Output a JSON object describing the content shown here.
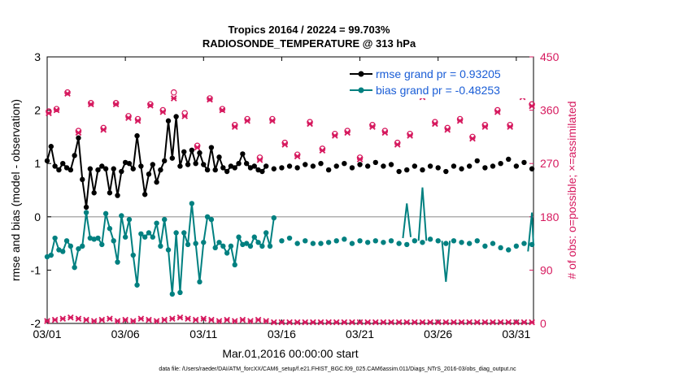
{
  "chart_data": {
    "type": "line",
    "title_line1": "Tropics 20164 / 20224 = 99.703%",
    "title_line2": "RADIOSONDE_TEMPERATURE @ 313 hPa",
    "xlabel": "Mar.01,2016 00:00:00 start",
    "ylabel_left": "rmse and bias (model - observation)",
    "ylabel_right": "# of obs: o=possible; ×=assimilated",
    "xlim": [
      0,
      31.1
    ],
    "ylim_left": [
      -2,
      3
    ],
    "ylim_right": [
      0,
      450
    ],
    "xticks": [
      {
        "x": 0,
        "label": "03/01"
      },
      {
        "x": 5,
        "label": "03/06"
      },
      {
        "x": 10,
        "label": "03/11"
      },
      {
        "x": 15,
        "label": "03/16"
      },
      {
        "x": 20,
        "label": "03/21"
      },
      {
        "x": 25,
        "label": "03/26"
      },
      {
        "x": 30,
        "label": "03/31"
      }
    ],
    "yticks_left": [
      "3",
      "2",
      "1",
      "0",
      "-1",
      "-2"
    ],
    "yticks_right": [
      "450",
      "360",
      "270",
      "180",
      "90",
      "0"
    ],
    "legend": {
      "position": "top-right",
      "entries": [
        {
          "label": "rmse grand pr = 0.93205",
          "color": "#000000"
        },
        {
          "label": "bias grand pr = -0.48253",
          "color": "#008080"
        }
      ]
    },
    "colors": {
      "rmse": "#000000",
      "bias": "#008080",
      "obs": "#d6195e",
      "zero_line": "#b0b0b0",
      "legend_text": "#1a5dd6"
    },
    "series": [
      {
        "name": "rmse",
        "axis": "left",
        "points": [
          [
            0.0,
            1.05
          ],
          [
            0.25,
            1.32
          ],
          [
            0.5,
            0.95
          ],
          [
            0.75,
            0.88
          ],
          [
            1.0,
            1.0
          ],
          [
            1.25,
            0.92
          ],
          [
            1.5,
            0.88
          ],
          [
            1.75,
            1.15
          ],
          [
            2.0,
            1.48
          ],
          [
            2.25,
            0.7
          ],
          [
            2.5,
            0.18
          ],
          [
            2.75,
            0.9
          ],
          [
            3.0,
            0.45
          ],
          [
            3.25,
            0.88
          ],
          [
            3.5,
            0.95
          ],
          [
            3.75,
            0.9
          ],
          [
            4.0,
            0.45
          ],
          [
            4.25,
            0.9
          ],
          [
            4.5,
            0.4
          ],
          [
            4.75,
            0.85
          ],
          [
            5.0,
            1.02
          ],
          [
            5.25,
            1.0
          ],
          [
            5.5,
            0.9
          ],
          [
            5.75,
            1.52
          ],
          [
            6.0,
            0.95
          ],
          [
            6.25,
            0.42
          ],
          [
            6.5,
            0.8
          ],
          [
            6.75,
            0.98
          ],
          [
            7.0,
            0.65
          ],
          [
            7.25,
            0.88
          ],
          [
            7.5,
            1.05
          ],
          [
            7.75,
            1.8
          ],
          [
            8.0,
            1.1
          ],
          [
            8.25,
            1.88
          ],
          [
            8.5,
            0.95
          ],
          [
            8.75,
            1.22
          ],
          [
            9.0,
            0.98
          ],
          [
            9.25,
            1.25
          ],
          [
            9.5,
            1.0
          ],
          [
            9.75,
            1.2
          ],
          [
            10.0,
            0.98
          ],
          [
            10.25,
            0.88
          ],
          [
            10.5,
            1.3
          ],
          [
            10.75,
            0.88
          ],
          [
            11.0,
            1.12
          ],
          [
            11.25,
            0.92
          ],
          [
            11.5,
            0.85
          ],
          [
            11.75,
            0.95
          ],
          [
            12.0,
            0.92
          ],
          [
            12.25,
            1.0
          ],
          [
            12.5,
            1.18
          ],
          [
            12.75,
            1.0
          ],
          [
            13.0,
            0.92
          ],
          [
            13.25,
            0.95
          ],
          [
            13.5,
            0.88
          ],
          [
            13.75,
            0.85
          ],
          [
            14.0,
            0.95
          ],
          [
            14.5,
            0.9
          ],
          [
            15.0,
            0.92
          ],
          [
            15.5,
            0.95
          ],
          [
            16.0,
            0.92
          ],
          [
            16.5,
            0.98
          ],
          [
            17.0,
            0.95
          ],
          [
            17.5,
            1.0
          ],
          [
            18.0,
            0.88
          ],
          [
            18.5,
            0.95
          ],
          [
            19.0,
            1.0
          ],
          [
            19.5,
            0.92
          ],
          [
            20.0,
            0.98
          ],
          [
            20.5,
            0.95
          ],
          [
            21.0,
            1.02
          ],
          [
            21.5,
            0.95
          ],
          [
            22.0,
            0.98
          ],
          [
            22.5,
            0.85
          ],
          [
            23.0,
            0.88
          ],
          [
            23.5,
            0.95
          ],
          [
            24.0,
            0.88
          ],
          [
            24.5,
            0.95
          ],
          [
            25.0,
            0.92
          ],
          [
            25.5,
            0.85
          ],
          [
            26.0,
            0.95
          ],
          [
            26.5,
            0.9
          ],
          [
            27.0,
            0.95
          ],
          [
            27.5,
            1.05
          ],
          [
            28.0,
            0.92
          ],
          [
            28.5,
            0.95
          ],
          [
            29.0,
            1.0
          ],
          [
            29.5,
            1.08
          ],
          [
            30.0,
            0.95
          ],
          [
            30.5,
            1.02
          ],
          [
            31.0,
            0.9
          ]
        ],
        "connected_until": 14.0
      },
      {
        "name": "bias",
        "axis": "left",
        "points": [
          [
            0.0,
            -0.75
          ],
          [
            0.25,
            -0.72
          ],
          [
            0.5,
            -0.4
          ],
          [
            0.75,
            -0.62
          ],
          [
            1.0,
            -0.65
          ],
          [
            1.25,
            -0.45
          ],
          [
            1.5,
            -0.55
          ],
          [
            1.75,
            -0.95
          ],
          [
            2.0,
            -0.6
          ],
          [
            2.25,
            -0.55
          ],
          [
            2.5,
            0.08
          ],
          [
            2.75,
            -0.4
          ],
          [
            3.0,
            -0.42
          ],
          [
            3.25,
            -0.4
          ],
          [
            3.5,
            -0.52
          ],
          [
            3.75,
            0.06
          ],
          [
            4.0,
            -0.22
          ],
          [
            4.25,
            -0.45
          ],
          [
            4.5,
            -0.85
          ],
          [
            4.75,
            0.02
          ],
          [
            5.0,
            -0.38
          ],
          [
            5.25,
            -0.05
          ],
          [
            5.5,
            -0.72
          ],
          [
            5.75,
            -1.28
          ],
          [
            6.0,
            -0.32
          ],
          [
            6.25,
            -0.38
          ],
          [
            6.5,
            -0.3
          ],
          [
            6.75,
            -0.38
          ],
          [
            7.0,
            -0.12
          ],
          [
            7.25,
            -0.55
          ],
          [
            7.5,
            -0.05
          ],
          [
            7.75,
            -0.62
          ],
          [
            8.0,
            -1.45
          ],
          [
            8.25,
            -0.3
          ],
          [
            8.5,
            -1.42
          ],
          [
            8.75,
            -0.3
          ],
          [
            9.0,
            -0.52
          ],
          [
            9.25,
            0.25
          ],
          [
            9.5,
            -0.5
          ],
          [
            9.75,
            -1.22
          ],
          [
            10.0,
            -0.48
          ],
          [
            10.25,
            0.0
          ],
          [
            10.5,
            -0.05
          ],
          [
            10.75,
            -0.58
          ],
          [
            11.0,
            -0.48
          ],
          [
            11.25,
            -0.55
          ],
          [
            11.5,
            -0.68
          ],
          [
            11.75,
            -0.55
          ],
          [
            12.0,
            -0.9
          ],
          [
            12.25,
            -0.38
          ],
          [
            12.5,
            -0.52
          ],
          [
            12.75,
            -0.5
          ],
          [
            13.0,
            -0.55
          ],
          [
            13.25,
            -0.38
          ],
          [
            13.5,
            -0.48
          ],
          [
            13.75,
            -0.55
          ],
          [
            14.0,
            -0.3
          ],
          [
            14.25,
            -0.55
          ],
          [
            14.5,
            -0.02
          ],
          [
            15.0,
            -0.45
          ],
          [
            15.5,
            -0.4
          ],
          [
            16.0,
            -0.5
          ],
          [
            16.5,
            -0.45
          ],
          [
            17.0,
            -0.5
          ],
          [
            17.5,
            -0.5
          ],
          [
            18.0,
            -0.48
          ],
          [
            18.5,
            -0.45
          ],
          [
            19.0,
            -0.42
          ],
          [
            19.5,
            -0.5
          ],
          [
            20.0,
            -0.45
          ],
          [
            20.5,
            -0.48
          ],
          [
            21.0,
            -0.45
          ],
          [
            21.5,
            -0.48
          ],
          [
            22.0,
            -0.45
          ],
          [
            22.5,
            -0.5
          ],
          [
            23.0,
            -0.52
          ],
          [
            23.5,
            -0.45
          ],
          [
            24.0,
            -0.48
          ],
          [
            24.5,
            -0.42
          ],
          [
            25.0,
            -0.45
          ],
          [
            25.5,
            -0.5
          ],
          [
            26.0,
            -0.45
          ],
          [
            26.5,
            -0.48
          ],
          [
            27.0,
            -0.5
          ],
          [
            27.5,
            -0.45
          ],
          [
            28.0,
            -0.55
          ],
          [
            28.5,
            -0.5
          ],
          [
            29.0,
            -0.58
          ],
          [
            29.5,
            -0.62
          ],
          [
            30.0,
            -0.55
          ],
          [
            30.5,
            -0.5
          ],
          [
            31.0,
            -0.52
          ]
        ],
        "connected_until": 14.5,
        "extra_segments": [
          [
            [
              22.75,
              -0.4
            ],
            [
              23.0,
              0.25
            ],
            [
              23.25,
              -0.38
            ]
          ],
          [
            [
              23.75,
              -0.45
            ],
            [
              24.0,
              0.55
            ],
            [
              24.25,
              -0.45
            ]
          ],
          [
            [
              25.25,
              -0.45
            ],
            [
              25.5,
              -1.22
            ],
            [
              25.75,
              -0.45
            ]
          ],
          [
            [
              30.75,
              -0.65
            ],
            [
              31.0,
              0.08
            ],
            [
              31.25,
              -0.55
            ]
          ]
        ]
      },
      {
        "name": "obs-possible",
        "axis": "right",
        "marker": "o",
        "values_x": [
          0.1,
          0.6,
          1.3,
          2.0,
          2.8,
          3.6,
          4.4,
          5.2,
          5.8,
          6.6,
          7.4,
          8.1,
          8.8,
          9.6,
          10.4,
          11.2,
          12.0,
          12.8,
          13.6,
          14.4,
          15.2,
          16.0,
          16.8,
          17.6,
          18.4,
          19.2,
          20.0,
          20.8,
          21.6,
          22.4,
          23.2,
          24.0,
          24.8,
          25.6,
          26.4,
          27.2,
          28.0,
          28.8,
          29.6,
          30.4,
          31.0
        ],
        "values_y": [
          358,
          362,
          390,
          325,
          372,
          330,
          372,
          350,
          345,
          370,
          360,
          390,
          355,
          300,
          380,
          362,
          335,
          345,
          280,
          345,
          305,
          285,
          340,
          295,
          320,
          325,
          280,
          335,
          325,
          305,
          320,
          385,
          340,
          330,
          345,
          315,
          335,
          360,
          335,
          385,
          370
        ]
      },
      {
        "name": "obs-assimilated",
        "axis": "right",
        "marker": "x",
        "values_x": [
          0.1,
          0.6,
          1.3,
          2.0,
          2.8,
          3.6,
          4.4,
          5.2,
          5.8,
          6.6,
          7.4,
          8.1,
          8.8,
          9.6,
          10.4,
          11.2,
          12.0,
          12.8,
          13.6,
          14.4,
          15.2,
          16.0,
          16.8,
          17.6,
          18.4,
          19.2,
          20.0,
          20.8,
          21.6,
          22.4,
          23.2,
          24.0,
          24.8,
          25.6,
          26.4,
          27.2,
          28.0,
          28.8,
          29.6,
          30.4,
          31.0
        ],
        "values_y": [
          355,
          360,
          388,
          322,
          370,
          327,
          370,
          347,
          342,
          368,
          357,
          380,
          350,
          297,
          378,
          360,
          332,
          342,
          276,
          342,
          302,
          282,
          337,
          292,
          317,
          322,
          277,
          332,
          322,
          302,
          317,
          382,
          337,
          327,
          342,
          312,
          332,
          357,
          332,
          382,
          367
        ]
      },
      {
        "name": "obs-bottom",
        "axis": "right",
        "marker": "x",
        "values_x": [
          0,
          0.5,
          1,
          1.5,
          2,
          2.5,
          3,
          3.5,
          4,
          4.5,
          5,
          5.5,
          6,
          6.5,
          7,
          7.5,
          8,
          8.5,
          9,
          9.5,
          10,
          10.5,
          11,
          11.5,
          12,
          12.5,
          13,
          13.5,
          14,
          14.5,
          15,
          15.5,
          16,
          16.5,
          17,
          17.5,
          18,
          18.5,
          19,
          19.5,
          20,
          20.5,
          21,
          21.5,
          22,
          22.5,
          23,
          23.5,
          24,
          24.5,
          25,
          25.5,
          26,
          26.5,
          27,
          27.5,
          28,
          28.5,
          29,
          29.5,
          30,
          30.5,
          31
        ],
        "values_y": [
          4,
          6,
          8,
          10,
          8,
          6,
          4,
          6,
          8,
          4,
          6,
          4,
          8,
          6,
          4,
          6,
          8,
          10,
          8,
          6,
          8,
          6,
          4,
          6,
          4,
          6,
          4,
          6,
          4,
          2,
          2,
          2,
          2,
          2,
          2,
          2,
          2,
          2,
          2,
          2,
          2,
          2,
          2,
          2,
          2,
          2,
          2,
          2,
          2,
          2,
          2,
          2,
          2,
          2,
          2,
          2,
          2,
          2,
          2,
          2,
          2,
          2,
          2
        ]
      }
    ]
  },
  "footer": "data file: /Users/raeder/DAI/ATM_forcXX/CAM6_setup/f.e21.FHIST_BGC.f09_025.CAM6assim.011/Diags_NTrS_2016-03/obs_diag_output.nc"
}
